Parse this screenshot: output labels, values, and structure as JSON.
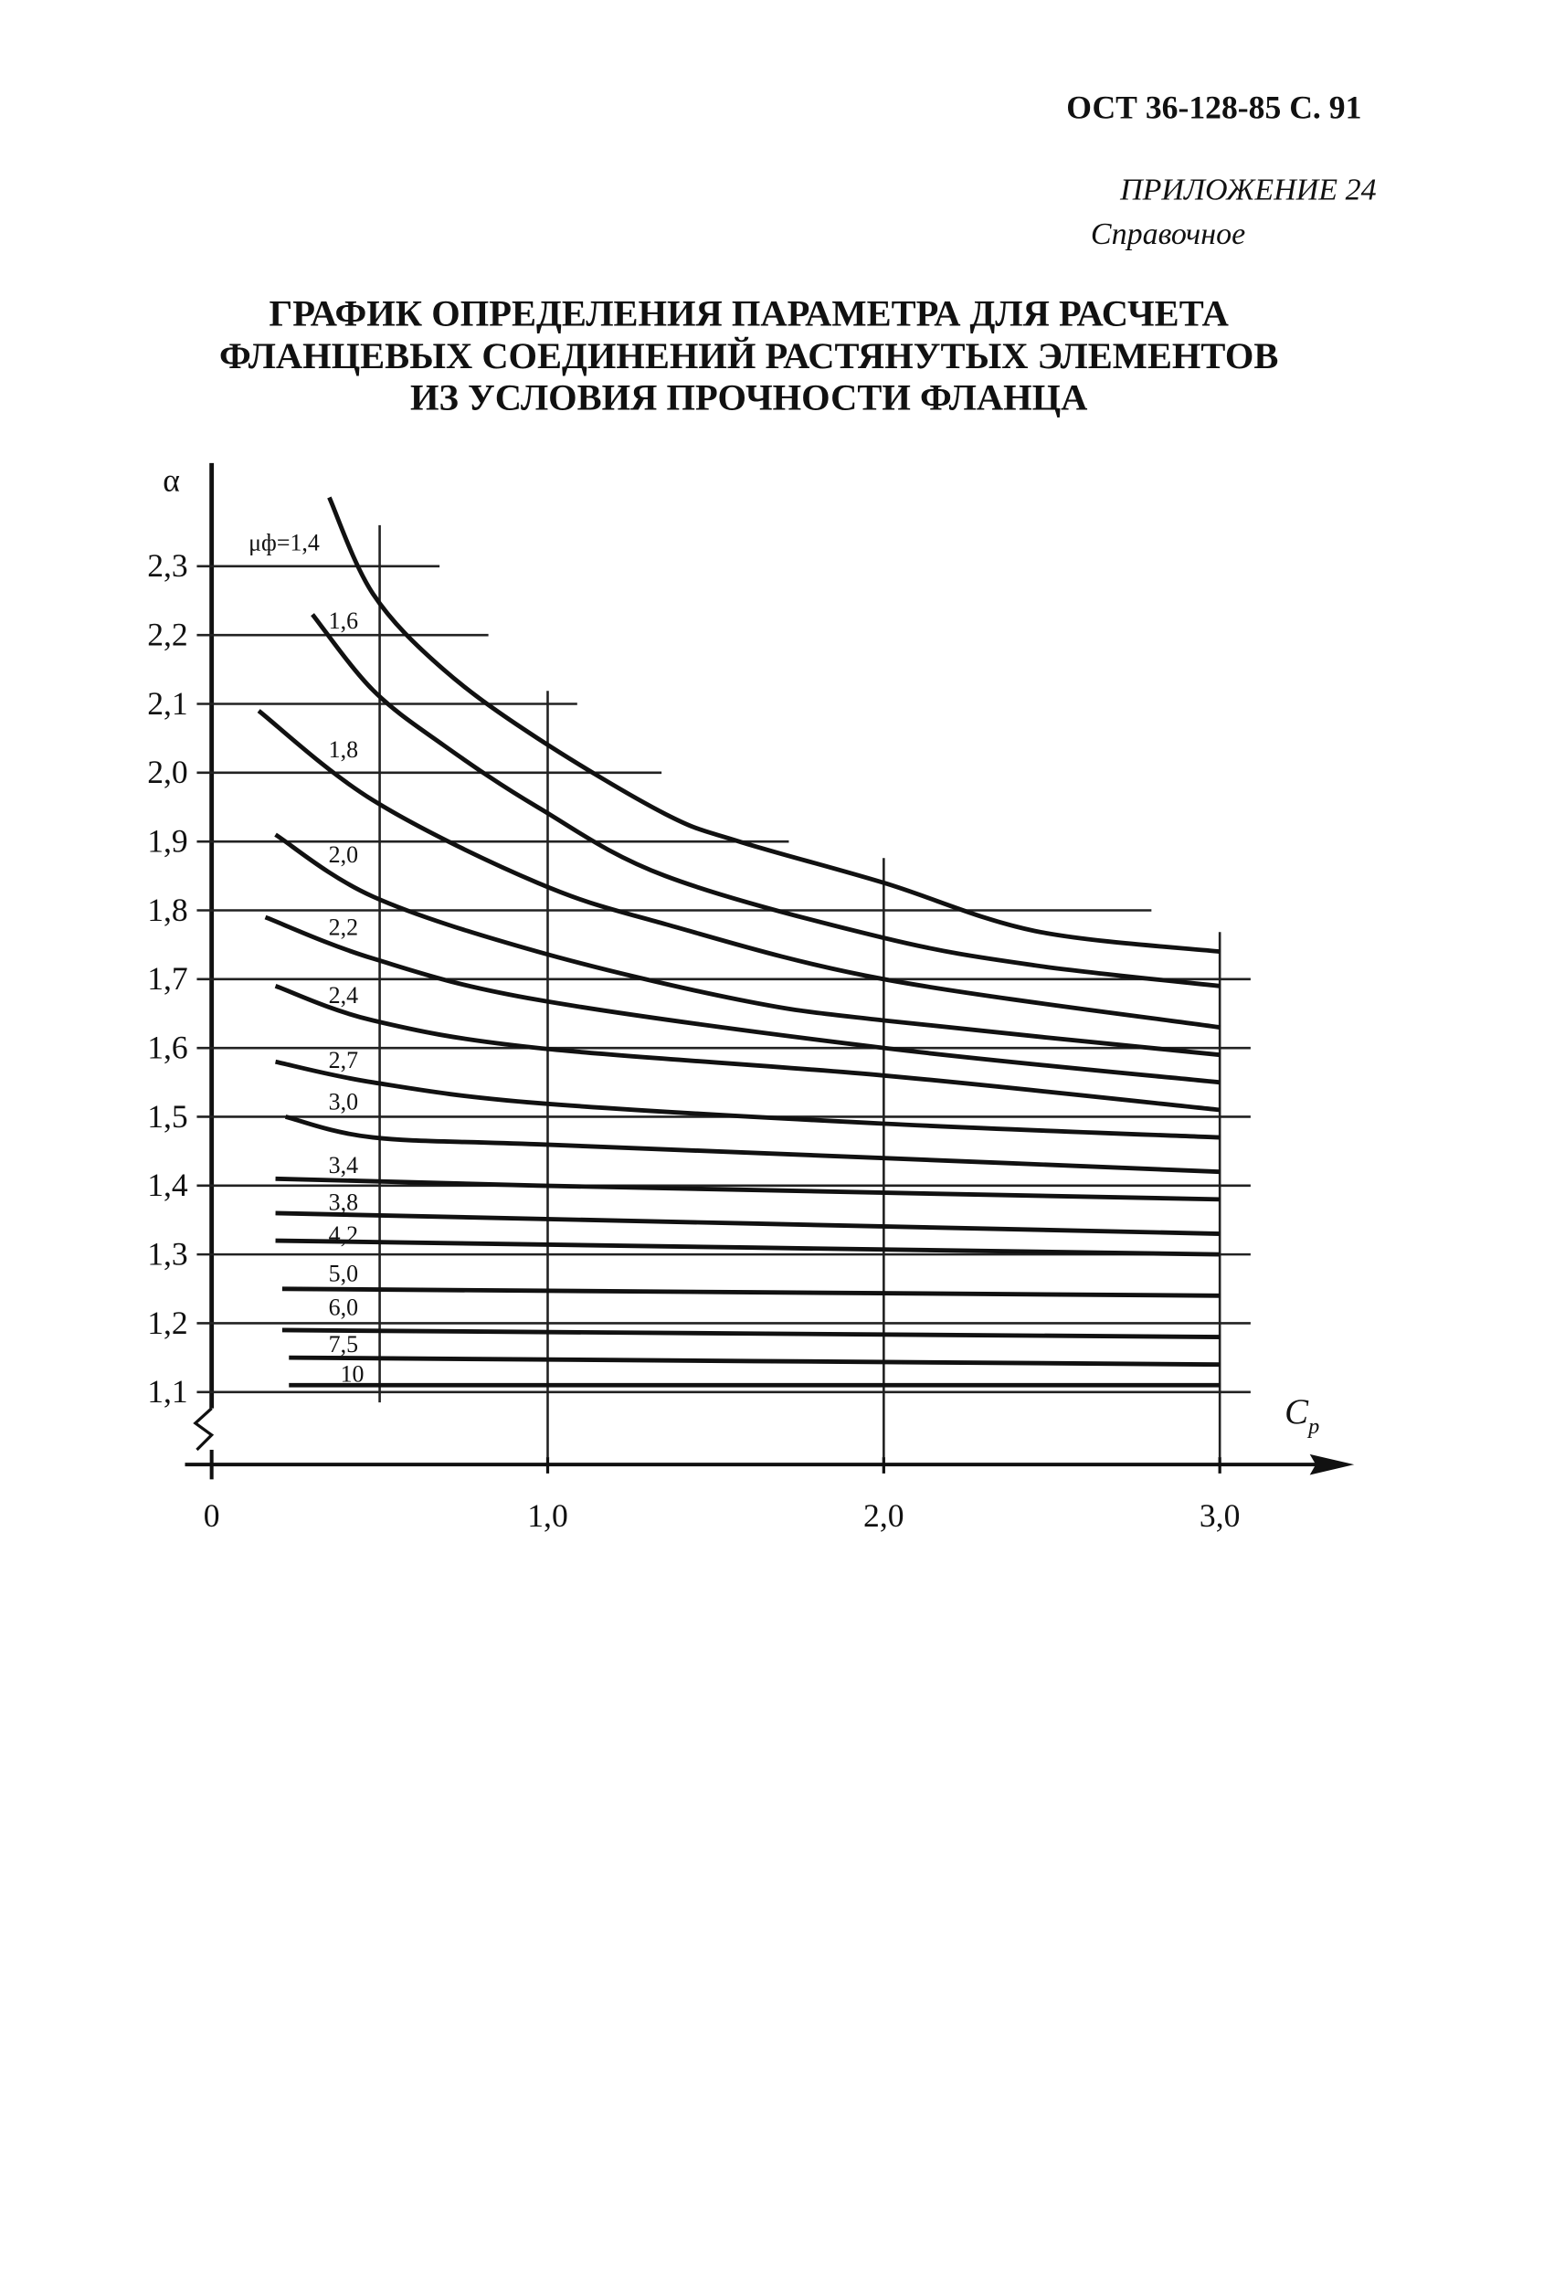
{
  "header": {
    "standard": "ОСТ 36-128-85 С. 91",
    "appendix": "ПРИЛОЖЕНИЕ 24",
    "appendix_kind": "Справочное",
    "title_lines": [
      "ГРАФИК ОПРЕДЕЛЕНИЯ ПАРАМЕТРА ДЛЯ РАСЧЕТА",
      "ФЛАНЦЕВЫХ СОЕДИНЕНИЙ РАСТЯНУТЫХ ЭЛЕМЕНТОВ",
      "ИЗ УСЛОВИЯ ПРОЧНОСТИ ФЛАНЦА"
    ]
  },
  "chart_data": {
    "type": "line",
    "y_label": "α",
    "x_label": "C",
    "x_label_subscript": "p",
    "xlim": [
      0,
      3.4
    ],
    "ylim": [
      1.0,
      2.45
    ],
    "xticks": [
      0,
      {
        "value": 1,
        "label": "1,0"
      },
      {
        "value": 2,
        "label": "2,0"
      },
      {
        "value": 3,
        "label": "3,0"
      }
    ],
    "xgrid": [
      0.5,
      1,
      2,
      3
    ],
    "yticks": [
      {
        "value": 2.3,
        "label": "2,3"
      },
      {
        "value": 2.2,
        "label": "2,2"
      },
      {
        "value": 2.1,
        "label": "2,1"
      },
      {
        "value": 2.0,
        "label": "2,0"
      },
      {
        "value": 1.9,
        "label": "1,9"
      },
      {
        "value": 1.8,
        "label": "1,8"
      },
      {
        "value": 1.7,
        "label": "1,7"
      },
      {
        "value": 1.6,
        "label": "1,6"
      },
      {
        "value": 1.5,
        "label": "1,5"
      },
      {
        "value": 1.4,
        "label": "1,4"
      },
      {
        "value": 1.3,
        "label": "1,3"
      },
      {
        "value": 1.2,
        "label": "1,2"
      },
      {
        "value": 1.1,
        "label": "1,1"
      }
    ],
    "color": "#111111",
    "series": [
      {
        "name": "μф=1,4",
        "x": [
          0.35,
          0.48,
          0.69,
          0.97,
          1.35,
          1.57,
          2.0,
          2.45,
          3.0
        ],
        "values": [
          2.4,
          2.26,
          2.15,
          2.05,
          1.94,
          1.9,
          1.84,
          1.77,
          1.74
        ]
      },
      {
        "name": "1,6",
        "x": [
          0.3,
          0.48,
          0.69,
          0.97,
          1.35,
          2.0,
          2.45,
          3.0
        ],
        "values": [
          2.23,
          2.12,
          2.04,
          1.95,
          1.85,
          1.76,
          1.72,
          1.69
        ]
      },
      {
        "name": "1,8",
        "x": [
          0.14,
          0.48,
          0.97,
          1.35,
          2.0,
          3.0
        ],
        "values": [
          2.09,
          1.96,
          1.84,
          1.78,
          1.7,
          1.63
        ]
      },
      {
        "name": "2,0",
        "x": [
          0.19,
          0.48,
          0.97,
          1.57,
          2.0,
          3.0
        ],
        "values": [
          1.91,
          1.82,
          1.74,
          1.67,
          1.64,
          1.59
        ]
      },
      {
        "name": "2,2",
        "x": [
          0.16,
          0.48,
          0.97,
          2.0,
          3.0
        ],
        "values": [
          1.79,
          1.73,
          1.67,
          1.6,
          1.55
        ]
      },
      {
        "name": "2,4",
        "x": [
          0.19,
          0.48,
          0.97,
          2.0,
          3.0
        ],
        "values": [
          1.69,
          1.64,
          1.6,
          1.56,
          1.51
        ]
      },
      {
        "name": "2,7",
        "x": [
          0.19,
          0.48,
          0.97,
          2.0,
          3.0
        ],
        "values": [
          1.58,
          1.55,
          1.52,
          1.49,
          1.47
        ]
      },
      {
        "name": "3,0",
        "x": [
          0.22,
          0.48,
          0.97,
          2.0,
          3.0
        ],
        "values": [
          1.5,
          1.47,
          1.46,
          1.44,
          1.42
        ]
      },
      {
        "name": "3,4",
        "x": [
          0.19,
          0.97,
          3.0
        ],
        "values": [
          1.41,
          1.4,
          1.38
        ]
      },
      {
        "name": "3,8",
        "x": [
          0.19,
          3.0
        ],
        "values": [
          1.36,
          1.33
        ]
      },
      {
        "name": "4,2",
        "x": [
          0.19,
          3.0
        ],
        "values": [
          1.32,
          1.3
        ]
      },
      {
        "name": "5,0",
        "x": [
          0.21,
          3.0
        ],
        "values": [
          1.25,
          1.24
        ]
      },
      {
        "name": "6,0",
        "x": [
          0.21,
          3.0
        ],
        "values": [
          1.19,
          1.18
        ]
      },
      {
        "name": "7,5",
        "x": [
          0.23,
          3.0
        ],
        "values": [
          1.15,
          1.14
        ]
      },
      {
        "name": "10",
        "x": [
          0.23,
          3.0
        ],
        "values": [
          1.11,
          1.11
        ]
      }
    ]
  }
}
